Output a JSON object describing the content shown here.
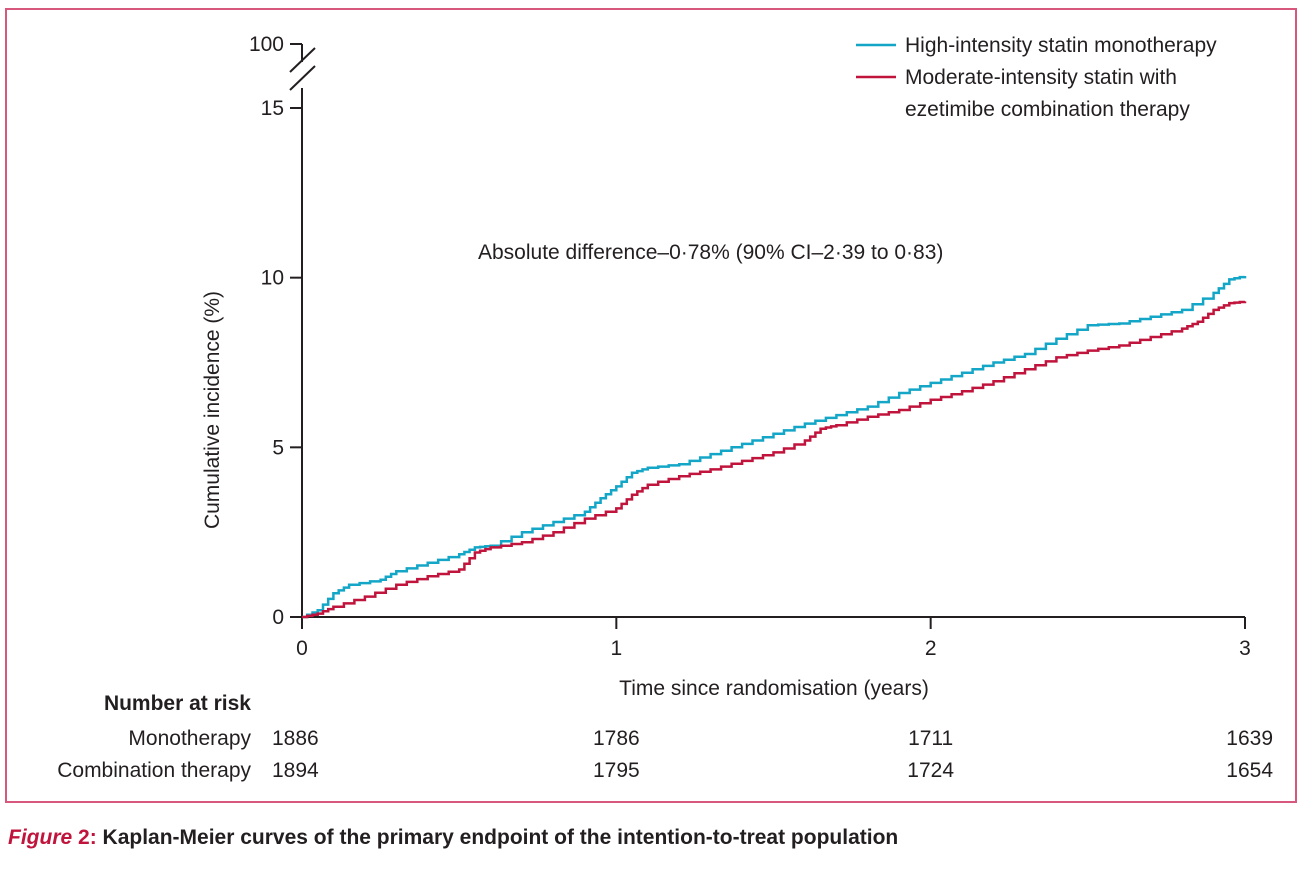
{
  "caption": {
    "figure_label": "Figure",
    "figure_number": "2:",
    "text": "Kaplan-Meier curves of the primary endpoint of the intention-to-treat population"
  },
  "colors": {
    "monotherapy": "#14a6c7",
    "combination": "#c0143c",
    "frame": "#d7577d",
    "axis": "#231f20"
  },
  "chart_data": {
    "type": "line",
    "subtype": "kaplan-meier-step",
    "title": "",
    "xlabel": "Time since randomisation (years)",
    "ylabel": "Cumulative incidence (%)",
    "xlim": [
      0,
      3
    ],
    "ylim": [
      0,
      15
    ],
    "y_axis_break": {
      "upper_tick": "100",
      "lower_value": 15
    },
    "x_ticks": [
      "0",
      "1",
      "2",
      "3"
    ],
    "x_tick_values": [
      0,
      1,
      2,
      3
    ],
    "y_ticks": [
      "0",
      "5",
      "10",
      "15",
      "100"
    ],
    "y_tick_values": [
      0,
      5,
      10,
      15
    ],
    "grid": false,
    "legend_position": "top-right",
    "annotation": "Absolute difference–0·78% (90% CI–2·39 to 0·83)",
    "series": [
      {
        "name": "High-intensity statin monotherapy",
        "legend_lines": [
          "High-intensity statin monotherapy"
        ],
        "color": "#14a6c7",
        "x": [
          0,
          0.05,
          0.1,
          0.15,
          0.25,
          0.3,
          0.4,
          0.5,
          0.55,
          0.6,
          0.7,
          0.8,
          0.9,
          0.95,
          1.0,
          1.05,
          1.1,
          1.2,
          1.3,
          1.4,
          1.5,
          1.6,
          1.7,
          1.8,
          1.9,
          2.0,
          2.1,
          2.2,
          2.3,
          2.4,
          2.5,
          2.6,
          2.7,
          2.8,
          2.9,
          2.95,
          3.0
        ],
        "y": [
          0,
          0.2,
          0.7,
          0.95,
          1.1,
          1.35,
          1.6,
          1.85,
          2.05,
          2.1,
          2.5,
          2.8,
          3.1,
          3.5,
          3.85,
          4.25,
          4.4,
          4.5,
          4.8,
          5.1,
          5.4,
          5.7,
          5.95,
          6.2,
          6.6,
          6.9,
          7.2,
          7.5,
          7.75,
          8.2,
          8.6,
          8.65,
          8.85,
          9.05,
          9.55,
          9.95,
          10.05
        ]
      },
      {
        "name": "Moderate-intensity statin with ezetimibe combination therapy",
        "legend_lines": [
          "Moderate-intensity statin with",
          "ezetimibe combination therapy"
        ],
        "color": "#c0143c",
        "x": [
          0,
          0.05,
          0.1,
          0.2,
          0.3,
          0.4,
          0.5,
          0.55,
          0.6,
          0.7,
          0.8,
          0.9,
          1.0,
          1.05,
          1.1,
          1.2,
          1.3,
          1.4,
          1.5,
          1.6,
          1.65,
          1.7,
          1.8,
          1.9,
          2.0,
          2.1,
          2.2,
          2.3,
          2.4,
          2.5,
          2.6,
          2.7,
          2.8,
          2.85,
          2.9,
          2.95,
          3.0
        ],
        "y": [
          0,
          0.1,
          0.3,
          0.6,
          0.95,
          1.2,
          1.4,
          1.9,
          2.05,
          2.2,
          2.5,
          2.9,
          3.2,
          3.6,
          3.9,
          4.15,
          4.35,
          4.6,
          4.85,
          5.2,
          5.55,
          5.65,
          5.9,
          6.1,
          6.4,
          6.65,
          6.95,
          7.3,
          7.65,
          7.85,
          8.0,
          8.25,
          8.5,
          8.7,
          9.05,
          9.25,
          9.3
        ]
      }
    ],
    "number_at_risk": {
      "title": "Number at risk",
      "time_points": [
        0,
        1,
        2,
        3
      ],
      "rows": [
        {
          "label": "Monotherapy",
          "values": [
            "1886",
            "1786",
            "1711",
            "1639"
          ]
        },
        {
          "label": "Combination therapy",
          "values": [
            "1894",
            "1795",
            "1724",
            "1654"
          ]
        }
      ]
    }
  }
}
